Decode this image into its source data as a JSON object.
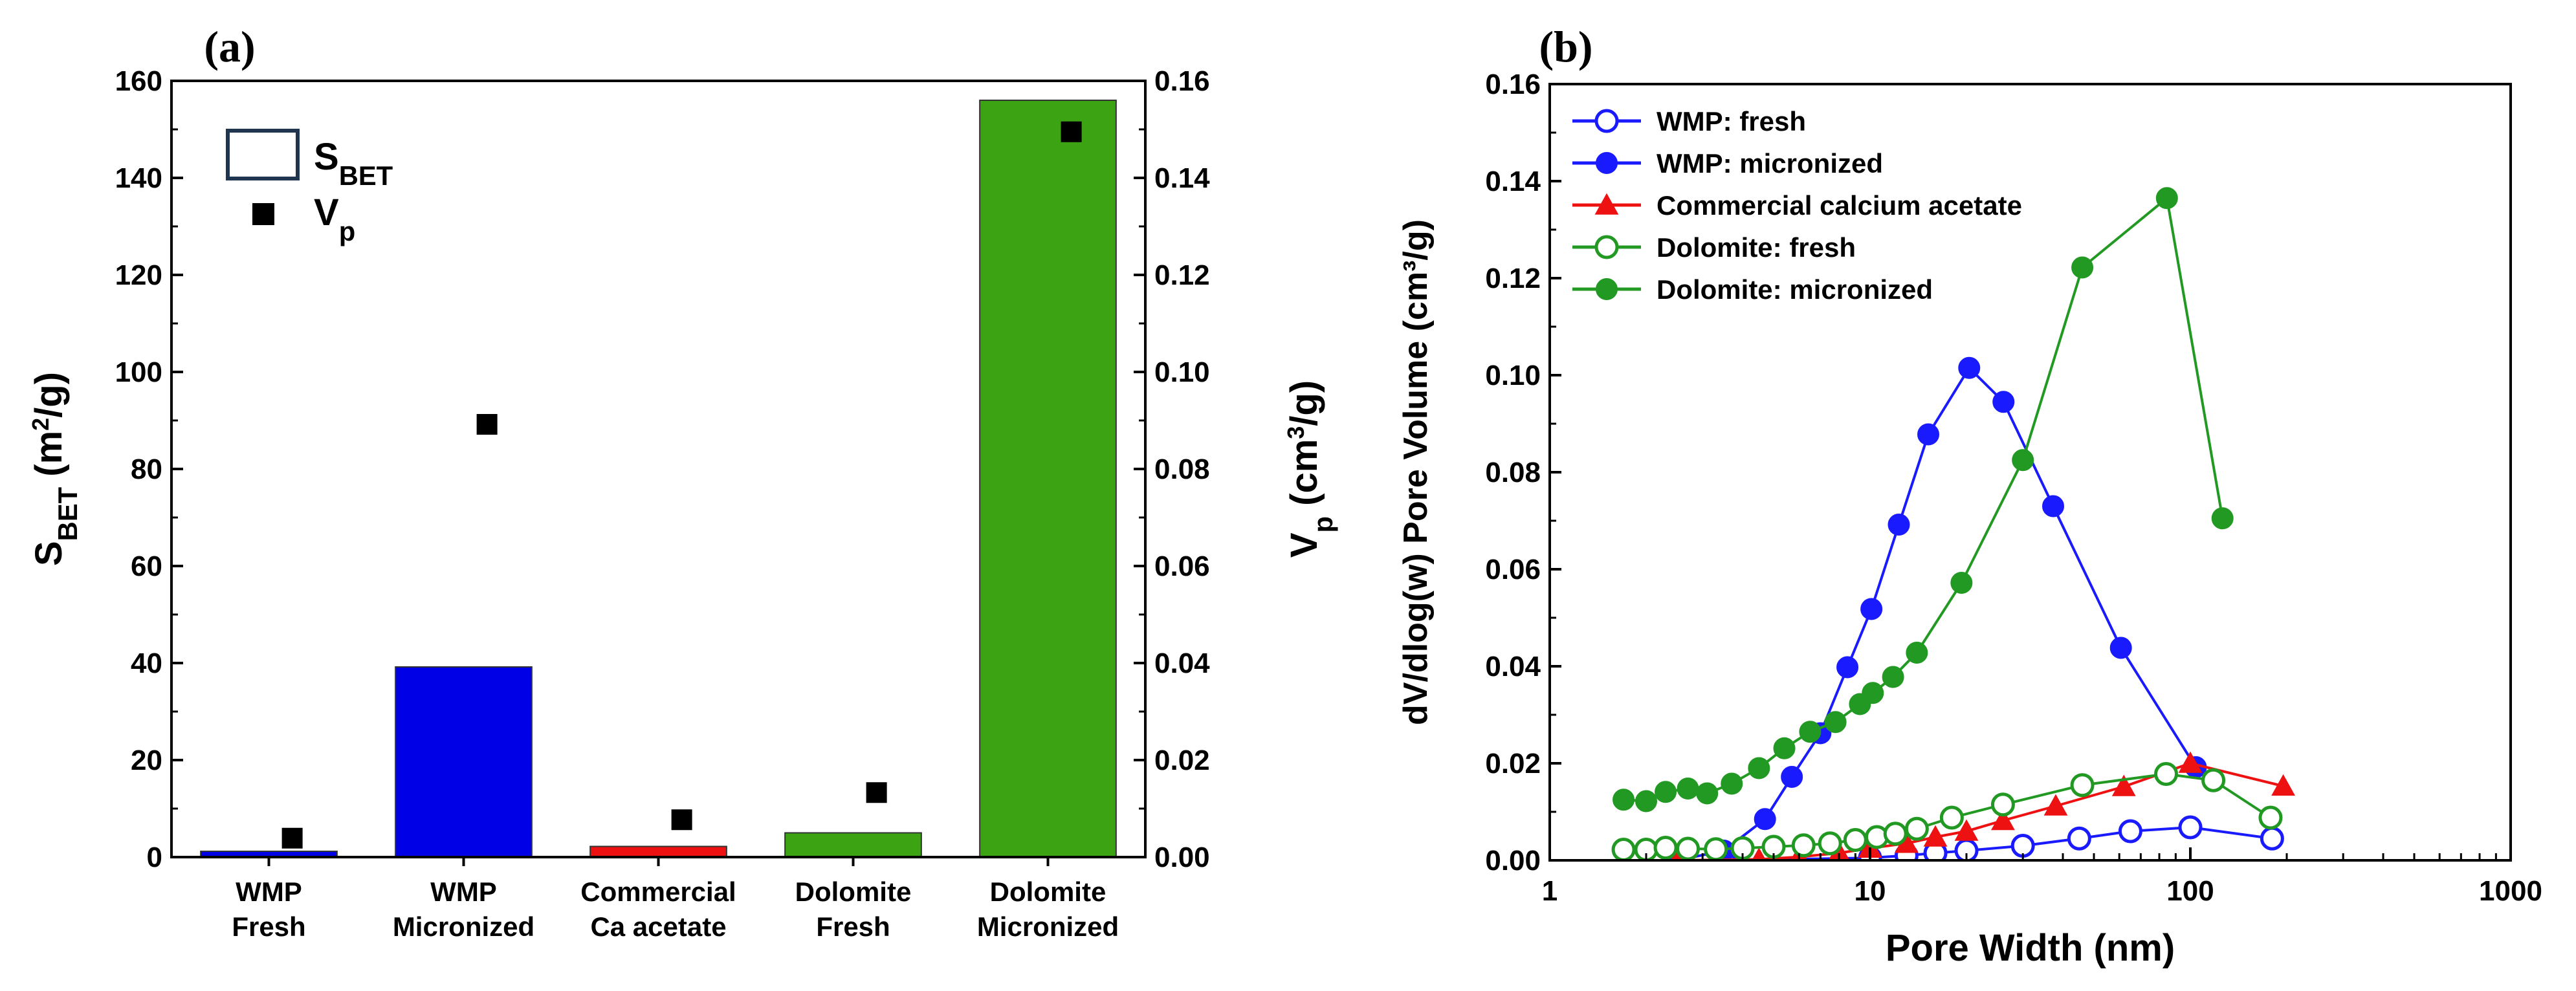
{
  "chart_data": [
    {
      "panel_label": "(a)",
      "type": "bar",
      "categories": [
        [
          "WMP",
          "Fresh"
        ],
        [
          "WMP",
          "Micronized"
        ],
        [
          "Commercial",
          "Ca acetate"
        ],
        [
          "Dolomite",
          "Fresh"
        ],
        [
          "Dolomite",
          "Micronized"
        ]
      ],
      "bar_colors": [
        "#0000e6",
        "#0000e6",
        "#ee1111",
        "#3ca312",
        "#3ca312"
      ],
      "series": [
        {
          "name": "S_BET",
          "axis": "left",
          "kind": "bar",
          "values": [
            1.2,
            39.2,
            2.2,
            5.0,
            156.0
          ]
        },
        {
          "name": "V_p",
          "axis": "right",
          "kind": "scatter-square",
          "values": [
            0.0039,
            0.0892,
            0.0077,
            0.0133,
            0.1495
          ]
        }
      ],
      "ylabel": {
        "main": "S",
        "sub": "BET",
        "unit_pre": " (m",
        "unit_sup": "2",
        "unit_post": "/g)"
      },
      "y2label": {
        "main": "V",
        "sub": "p",
        "unit_pre": " (cm",
        "unit_sup": "3",
        "unit_post": "/g)"
      },
      "ylim": [
        0,
        160
      ],
      "y2lim": [
        0,
        0.16
      ],
      "yticks": [
        "0",
        "20",
        "40",
        "60",
        "80",
        "100",
        "120",
        "140",
        "160"
      ],
      "y2ticks": [
        "0.00",
        "0.02",
        "0.04",
        "0.06",
        "0.08",
        "0.10",
        "0.12",
        "0.14",
        "0.16"
      ],
      "legend": [
        {
          "marker": "open-rect",
          "main": "S",
          "sub": "BET"
        },
        {
          "marker": "filled-square",
          "main": "V",
          "sub": "p"
        }
      ],
      "legend_position": "top-left",
      "colors": {
        "legend_rect_stroke": "#1f3550",
        "square": "#000000"
      }
    },
    {
      "panel_label": "(b)",
      "type": "line",
      "xscale": "log",
      "xlim": [
        1,
        1000
      ],
      "ylim": [
        0,
        0.16
      ],
      "xlabel": "Pore Width (nm)",
      "ylabel": "dV/dlog(w) Pore Volume (cm³/g)",
      "xticks": [
        "1",
        "10",
        "100",
        "1000"
      ],
      "yticks": [
        "0.00",
        "0.02",
        "0.04",
        "0.06",
        "0.08",
        "0.10",
        "0.12",
        "0.14",
        "0.16"
      ],
      "legend_position": "top-left",
      "series": [
        {
          "name": "WMP: fresh",
          "color": "#1a1aff",
          "marker": "open-circle",
          "x": [
            3.5,
            10,
            13,
            16,
            20,
            30,
            45,
            65,
            100,
            180
          ],
          "y": [
            0.0,
            0.0005,
            0.001,
            0.0015,
            0.002,
            0.003,
            0.0045,
            0.006,
            0.0068,
            0.0045
          ]
        },
        {
          "name": "WMP: micronized",
          "color": "#1a1aff",
          "marker": "filled-circle",
          "x": [
            2.5,
            3.5,
            4.7,
            5.7,
            7.0,
            8.5,
            10.1,
            12.3,
            15.2,
            20.4,
            26.1,
            37.3,
            60.7,
            104
          ],
          "y": [
            0.0,
            0.002,
            0.0085,
            0.0172,
            0.0262,
            0.0398,
            0.0518,
            0.0692,
            0.0878,
            0.1015,
            0.0945,
            0.073,
            0.0438,
            0.0192
          ]
        },
        {
          "name": "Commercial calcium acetate",
          "color": "#ee1111",
          "marker": "filled-triangle",
          "x": [
            2.5,
            4.5,
            6.0,
            8.0,
            10,
            13,
            16,
            20,
            26,
            38,
            62,
            100,
            195
          ],
          "y": [
            0.0,
            0.0002,
            0.0007,
            0.0015,
            0.0025,
            0.0035,
            0.0048,
            0.006,
            0.0082,
            0.0112,
            0.0152,
            0.02,
            0.0153
          ]
        },
        {
          "name": "Dolomite: fresh",
          "color": "#229922",
          "marker": "open-circle",
          "x": [
            1.7,
            2.0,
            2.3,
            2.7,
            3.3,
            4.0,
            5.0,
            6.2,
            7.5,
            9.0,
            10.5,
            12.0,
            14.0,
            18.0,
            26.0,
            46.0,
            84.0,
            118.0,
            178.0
          ],
          "y": [
            0.0022,
            0.0022,
            0.0026,
            0.0024,
            0.0023,
            0.0025,
            0.0028,
            0.0031,
            0.0035,
            0.0042,
            0.0048,
            0.0055,
            0.0065,
            0.0088,
            0.0115,
            0.0155,
            0.0178,
            0.0165,
            0.0088
          ]
        },
        {
          "name": "Dolomite: micronized",
          "color": "#229922",
          "marker": "filled-circle",
          "x": [
            1.7,
            2.0,
            2.3,
            2.7,
            3.1,
            3.7,
            4.5,
            5.4,
            6.5,
            7.8,
            9.3,
            10.2,
            11.8,
            14.0,
            19.3,
            30.0,
            46.0,
            84.5,
            126.0
          ],
          "y": [
            0.0125,
            0.0122,
            0.0141,
            0.0148,
            0.0138,
            0.0158,
            0.019,
            0.0231,
            0.0265,
            0.0285,
            0.0322,
            0.0345,
            0.0378,
            0.0428,
            0.0572,
            0.0825,
            0.1222,
            0.1365,
            0.0705
          ]
        }
      ]
    }
  ]
}
